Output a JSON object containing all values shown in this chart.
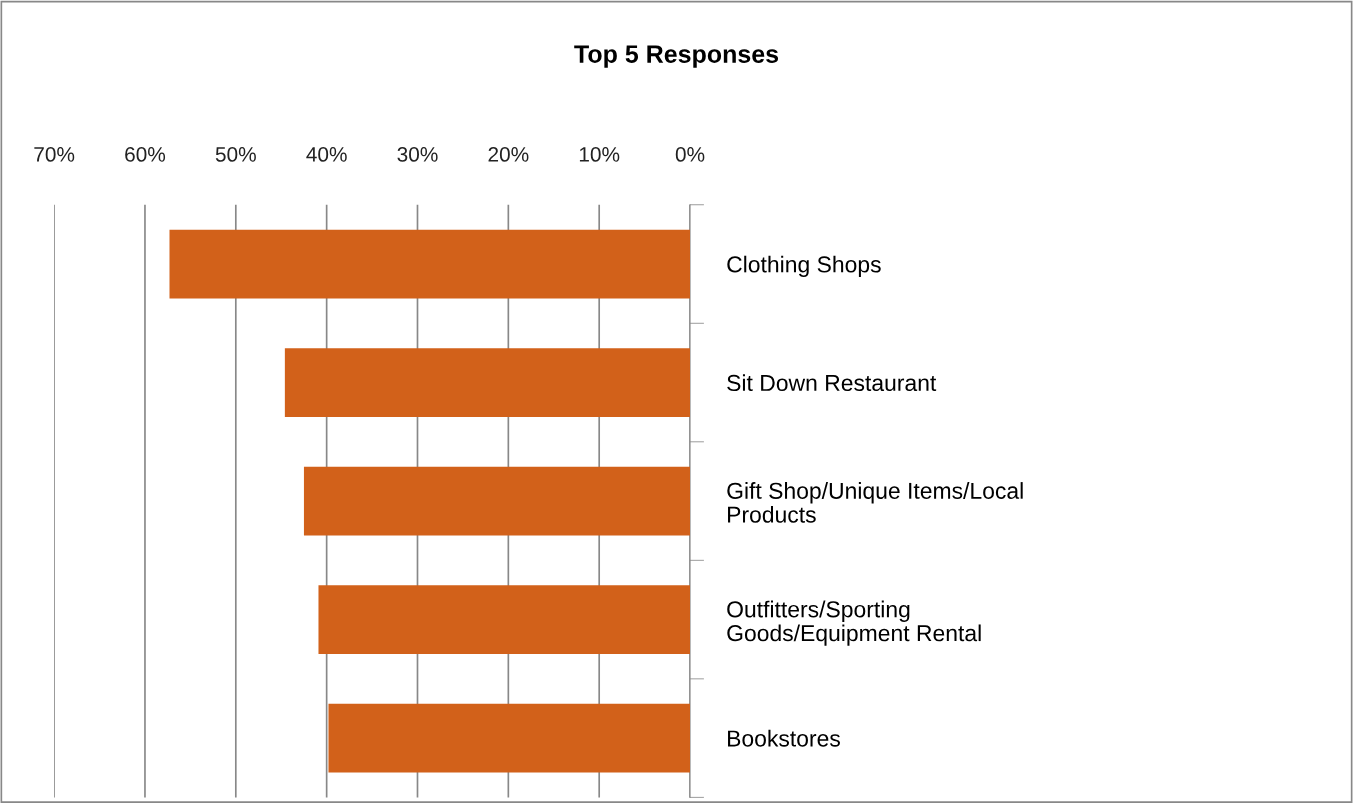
{
  "chart_data": {
    "type": "bar",
    "orientation": "horizontal",
    "title": "Top 5 Responses",
    "categories": [
      "Clothing Shops",
      "Sit Down Restaurant",
      "Gift Shop/Unique Items/Local\nProducts",
      "Outfitters/Sporting\nGoods/Equipment Rental",
      "Bookstores"
    ],
    "values": [
      57.3,
      44.6,
      42.5,
      40.9,
      39.8
    ],
    "color": "#d2611a",
    "xlim": [
      70,
      0
    ],
    "xticks": [
      {
        "value": 70,
        "label": "70%"
      },
      {
        "value": 60,
        "label": "60%"
      },
      {
        "value": 50,
        "label": "50%"
      },
      {
        "value": 40,
        "label": "40%"
      },
      {
        "value": 30,
        "label": "30%"
      },
      {
        "value": 20,
        "label": "20%"
      },
      {
        "value": 10,
        "label": "10%"
      },
      {
        "value": 0,
        "label": "0%"
      }
    ],
    "grid": "x",
    "legend": false
  }
}
